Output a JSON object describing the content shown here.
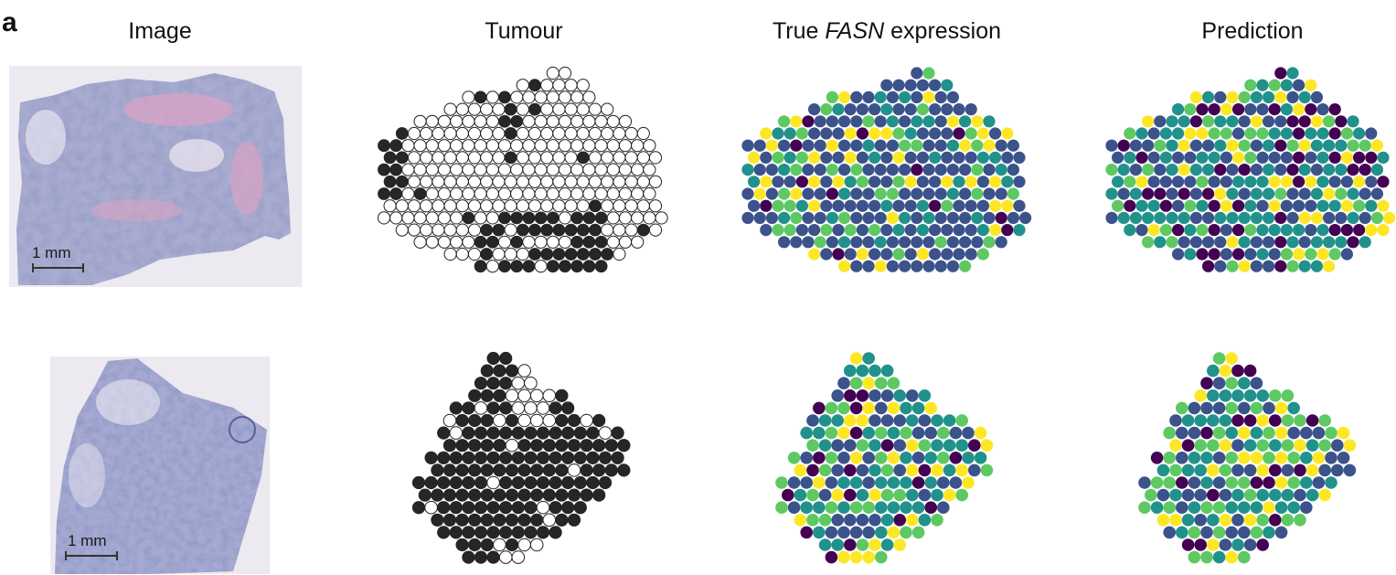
{
  "panel_label": "a",
  "columns": [
    {
      "id": "image",
      "title_pre": "Image",
      "title_em": "",
      "title_post": ""
    },
    {
      "id": "tumour",
      "title_pre": "Tumour",
      "title_em": "",
      "title_post": ""
    },
    {
      "id": "true",
      "title_pre": "True ",
      "title_em": "FASN",
      "title_post": " expression"
    },
    {
      "id": "prediction",
      "title_pre": "Prediction",
      "title_em": "",
      "title_post": ""
    }
  ],
  "scale_bar_label": "1 mm",
  "colors": {
    "tumour_fill": "#262626",
    "tumour_empty_stroke": "#222222",
    "viridis": [
      "#440154",
      "#3b528b",
      "#21918c",
      "#5ec962",
      "#fde725"
    ],
    "tissue_base": "#9aa0c8",
    "tissue_pink": "#d8a6c6"
  },
  "chart_data": [
    {
      "type": "spot_map",
      "section": 1,
      "kind": "tumour",
      "legend": "filled = tumour, open = non-tumour"
    },
    {
      "type": "spot_map",
      "section": 1,
      "kind": "expression",
      "gene": "FASN",
      "colormap": "viridis"
    },
    {
      "type": "spot_map",
      "section": 1,
      "kind": "prediction",
      "gene": "FASN",
      "colormap": "viridis"
    },
    {
      "type": "spot_map",
      "section": 2,
      "kind": "tumour"
    },
    {
      "type": "spot_map",
      "section": 2,
      "kind": "expression",
      "gene": "FASN",
      "colormap": "viridis"
    },
    {
      "type": "spot_map",
      "section": 2,
      "kind": "prediction",
      "gene": "FASN",
      "colormap": "viridis"
    }
  ]
}
